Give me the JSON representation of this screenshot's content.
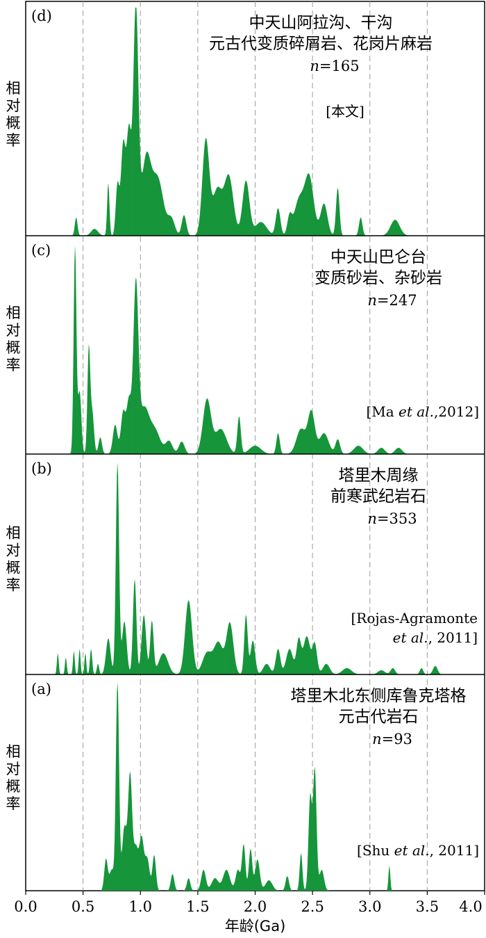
{
  "chart_data": {
    "type": "area",
    "xlabel": "年龄(Ga)",
    "ylabel": "相对概率",
    "xlim": [
      0.0,
      4.0
    ],
    "xticks": [
      "0.0",
      "0.5",
      "1.0",
      "1.5",
      "2.0",
      "2.5",
      "3.0",
      "3.5",
      "4.0"
    ],
    "grid": "vertical dashed lines at 0.5 Ga intervals",
    "color": "#16953a",
    "panels": [
      {
        "id": "d",
        "label": "(d)",
        "title_lines": [
          "中天山阿拉沟、干沟",
          "元古代变质碎屑岩、花岗片麻岩"
        ],
        "n": "165",
        "n_label": "n=165",
        "ref": "[本文]",
        "peaks": [
          {
            "x": 0.44,
            "h": 0.08,
            "w": 0.012
          },
          {
            "x": 0.6,
            "h": 0.03,
            "w": 0.03
          },
          {
            "x": 0.72,
            "h": 0.23,
            "w": 0.01
          },
          {
            "x": 0.8,
            "h": 0.22,
            "w": 0.015
          },
          {
            "x": 0.85,
            "h": 0.4,
            "w": 0.02
          },
          {
            "x": 0.9,
            "h": 0.45,
            "w": 0.02
          },
          {
            "x": 0.96,
            "h": 1.0,
            "w": 0.022
          },
          {
            "x": 1.05,
            "h": 0.33,
            "w": 0.04
          },
          {
            "x": 1.15,
            "h": 0.25,
            "w": 0.05
          },
          {
            "x": 1.27,
            "h": 0.07,
            "w": 0.03
          },
          {
            "x": 1.38,
            "h": 0.09,
            "w": 0.02
          },
          {
            "x": 1.57,
            "h": 0.42,
            "w": 0.03
          },
          {
            "x": 1.67,
            "h": 0.2,
            "w": 0.04
          },
          {
            "x": 1.77,
            "h": 0.26,
            "w": 0.04
          },
          {
            "x": 1.92,
            "h": 0.24,
            "w": 0.03
          },
          {
            "x": 2.05,
            "h": 0.06,
            "w": 0.05
          },
          {
            "x": 2.2,
            "h": 0.12,
            "w": 0.02
          },
          {
            "x": 2.3,
            "h": 0.08,
            "w": 0.02
          },
          {
            "x": 2.38,
            "h": 0.15,
            "w": 0.04
          },
          {
            "x": 2.47,
            "h": 0.26,
            "w": 0.04
          },
          {
            "x": 2.6,
            "h": 0.14,
            "w": 0.03
          },
          {
            "x": 2.72,
            "h": 0.21,
            "w": 0.015
          },
          {
            "x": 2.92,
            "h": 0.08,
            "w": 0.015
          },
          {
            "x": 3.22,
            "h": 0.07,
            "w": 0.04
          }
        ]
      },
      {
        "id": "c",
        "label": "(c)",
        "title_lines": [
          "中天山巴仑台",
          "变质砂岩、杂砂岩"
        ],
        "n": "247",
        "n_label": "n=247",
        "ref": "[Ma et al.,2012]",
        "peaks": [
          {
            "x": 0.43,
            "h": 1.0,
            "w": 0.012
          },
          {
            "x": 0.47,
            "h": 0.3,
            "w": 0.015
          },
          {
            "x": 0.55,
            "h": 0.5,
            "w": 0.012
          },
          {
            "x": 0.58,
            "h": 0.2,
            "w": 0.015
          },
          {
            "x": 0.65,
            "h": 0.08,
            "w": 0.015
          },
          {
            "x": 0.78,
            "h": 0.14,
            "w": 0.02
          },
          {
            "x": 0.85,
            "h": 0.2,
            "w": 0.02
          },
          {
            "x": 0.9,
            "h": 0.25,
            "w": 0.02
          },
          {
            "x": 0.96,
            "h": 0.8,
            "w": 0.022
          },
          {
            "x": 1.03,
            "h": 0.2,
            "w": 0.04
          },
          {
            "x": 1.12,
            "h": 0.12,
            "w": 0.05
          },
          {
            "x": 1.25,
            "h": 0.06,
            "w": 0.03
          },
          {
            "x": 1.36,
            "h": 0.06,
            "w": 0.025
          },
          {
            "x": 1.58,
            "h": 0.26,
            "w": 0.035
          },
          {
            "x": 1.7,
            "h": 0.12,
            "w": 0.05
          },
          {
            "x": 1.86,
            "h": 0.18,
            "w": 0.015
          },
          {
            "x": 2.0,
            "h": 0.04,
            "w": 0.05
          },
          {
            "x": 2.2,
            "h": 0.1,
            "w": 0.015
          },
          {
            "x": 2.4,
            "h": 0.12,
            "w": 0.04
          },
          {
            "x": 2.49,
            "h": 0.2,
            "w": 0.03
          },
          {
            "x": 2.6,
            "h": 0.1,
            "w": 0.04
          },
          {
            "x": 2.72,
            "h": 0.07,
            "w": 0.02
          },
          {
            "x": 2.9,
            "h": 0.04,
            "w": 0.04
          },
          {
            "x": 3.1,
            "h": 0.03,
            "w": 0.03
          },
          {
            "x": 3.25,
            "h": 0.03,
            "w": 0.03
          }
        ]
      },
      {
        "id": "b",
        "label": "(b)",
        "title_lines": [
          "塔里木周缘",
          "前寒武纪岩石"
        ],
        "n": "353",
        "n_label": "n=353",
        "ref_lines": [
          "[Rojas-Agramonte",
          "et al., 2011]"
        ],
        "peaks": [
          {
            "x": 0.28,
            "h": 0.1,
            "w": 0.008
          },
          {
            "x": 0.35,
            "h": 0.08,
            "w": 0.008
          },
          {
            "x": 0.42,
            "h": 0.11,
            "w": 0.008
          },
          {
            "x": 0.47,
            "h": 0.12,
            "w": 0.008
          },
          {
            "x": 0.52,
            "h": 0.1,
            "w": 0.008
          },
          {
            "x": 0.57,
            "h": 0.12,
            "w": 0.01
          },
          {
            "x": 0.63,
            "h": 0.05,
            "w": 0.01
          },
          {
            "x": 0.72,
            "h": 0.17,
            "w": 0.02
          },
          {
            "x": 0.8,
            "h": 1.0,
            "w": 0.014
          },
          {
            "x": 0.86,
            "h": 0.25,
            "w": 0.02
          },
          {
            "x": 0.95,
            "h": 0.45,
            "w": 0.015
          },
          {
            "x": 1.03,
            "h": 0.28,
            "w": 0.02
          },
          {
            "x": 1.1,
            "h": 0.25,
            "w": 0.015
          },
          {
            "x": 1.2,
            "h": 0.1,
            "w": 0.04
          },
          {
            "x": 1.42,
            "h": 0.35,
            "w": 0.03
          },
          {
            "x": 1.58,
            "h": 0.1,
            "w": 0.04
          },
          {
            "x": 1.68,
            "h": 0.15,
            "w": 0.04
          },
          {
            "x": 1.78,
            "h": 0.24,
            "w": 0.03
          },
          {
            "x": 1.92,
            "h": 0.28,
            "w": 0.015
          },
          {
            "x": 1.98,
            "h": 0.16,
            "w": 0.02
          },
          {
            "x": 2.1,
            "h": 0.05,
            "w": 0.03
          },
          {
            "x": 2.2,
            "h": 0.12,
            "w": 0.02
          },
          {
            "x": 2.3,
            "h": 0.12,
            "w": 0.03
          },
          {
            "x": 2.38,
            "h": 0.16,
            "w": 0.02
          },
          {
            "x": 2.45,
            "h": 0.18,
            "w": 0.03
          },
          {
            "x": 2.52,
            "h": 0.14,
            "w": 0.02
          },
          {
            "x": 2.62,
            "h": 0.05,
            "w": 0.03
          },
          {
            "x": 2.8,
            "h": 0.03,
            "w": 0.04
          },
          {
            "x": 3.1,
            "h": 0.02,
            "w": 0.03
          },
          {
            "x": 3.2,
            "h": 0.03,
            "w": 0.02
          },
          {
            "x": 3.45,
            "h": 0.03,
            "w": 0.015
          },
          {
            "x": 3.57,
            "h": 0.04,
            "w": 0.02
          }
        ]
      },
      {
        "id": "a",
        "label": "(a)",
        "title_lines": [
          "塔里木北东侧库鲁克塔格",
          "元古代岩石"
        ],
        "n": "93",
        "n_label": "n=93",
        "ref": "[Shu et al., 2011]",
        "peaks": [
          {
            "x": 0.7,
            "h": 0.15,
            "w": 0.015
          },
          {
            "x": 0.75,
            "h": 0.1,
            "w": 0.02
          },
          {
            "x": 0.8,
            "h": 1.0,
            "w": 0.014
          },
          {
            "x": 0.86,
            "h": 0.3,
            "w": 0.02
          },
          {
            "x": 0.91,
            "h": 0.55,
            "w": 0.018
          },
          {
            "x": 0.96,
            "h": 0.2,
            "w": 0.02
          },
          {
            "x": 1.01,
            "h": 0.25,
            "w": 0.02
          },
          {
            "x": 1.06,
            "h": 0.15,
            "w": 0.02
          },
          {
            "x": 1.12,
            "h": 0.17,
            "w": 0.015
          },
          {
            "x": 1.28,
            "h": 0.08,
            "w": 0.015
          },
          {
            "x": 1.42,
            "h": 0.06,
            "w": 0.015
          },
          {
            "x": 1.55,
            "h": 0.1,
            "w": 0.02
          },
          {
            "x": 1.65,
            "h": 0.06,
            "w": 0.03
          },
          {
            "x": 1.75,
            "h": 0.1,
            "w": 0.03
          },
          {
            "x": 1.85,
            "h": 0.1,
            "w": 0.02
          },
          {
            "x": 1.9,
            "h": 0.22,
            "w": 0.015
          },
          {
            "x": 1.96,
            "h": 0.2,
            "w": 0.015
          },
          {
            "x": 2.02,
            "h": 0.15,
            "w": 0.02
          },
          {
            "x": 2.12,
            "h": 0.05,
            "w": 0.03
          },
          {
            "x": 2.28,
            "h": 0.07,
            "w": 0.015
          },
          {
            "x": 2.4,
            "h": 0.18,
            "w": 0.012
          },
          {
            "x": 2.48,
            "h": 0.45,
            "w": 0.015
          },
          {
            "x": 2.52,
            "h": 0.58,
            "w": 0.015
          },
          {
            "x": 2.58,
            "h": 0.1,
            "w": 0.02
          },
          {
            "x": 3.17,
            "h": 0.12,
            "w": 0.008
          }
        ]
      }
    ]
  }
}
